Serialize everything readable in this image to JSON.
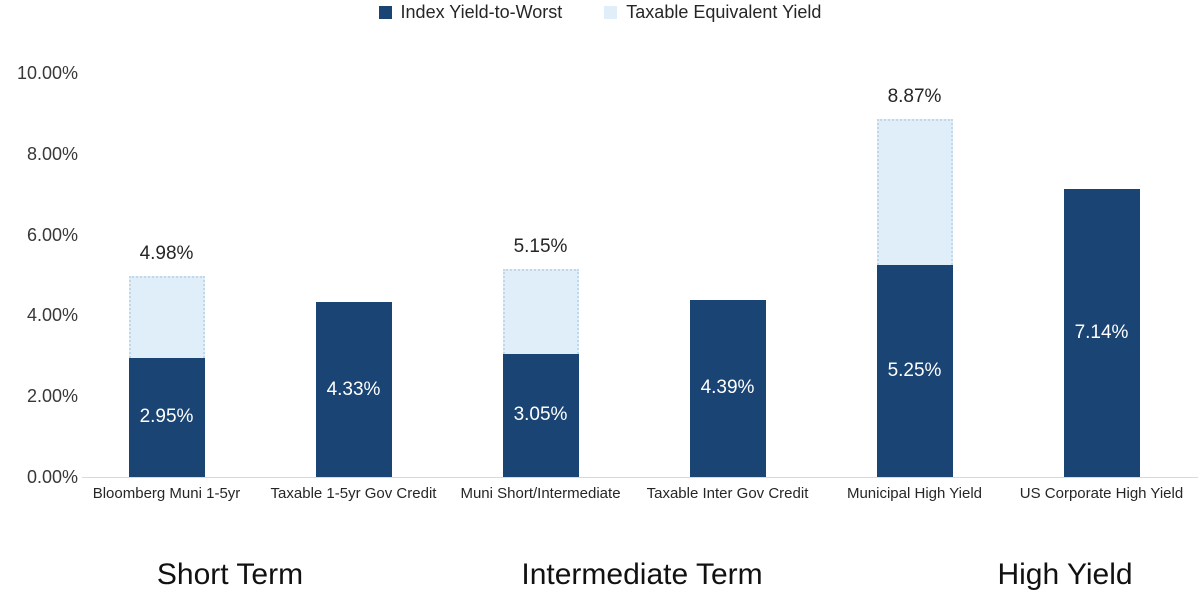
{
  "chart_data": {
    "type": "bar",
    "stacked": true,
    "title": "",
    "legend_position": "top",
    "grid": false,
    "ylim": [
      0,
      10
    ],
    "y_ticks": [
      "0.00%",
      "2.00%",
      "4.00%",
      "6.00%",
      "8.00%",
      "10.00%"
    ],
    "categories": [
      "Bloomberg Muni 1-5yr",
      "Taxable 1-5yr Gov Credit",
      "Muni Short/Intermediate",
      "Taxable Inter Gov Credit",
      "Municipal High Yield",
      "US Corporate High Yield"
    ],
    "series": [
      {
        "name": "Index Yield-to-Worst",
        "color": "#1a4473",
        "values": [
          2.95,
          4.33,
          3.05,
          4.39,
          5.25,
          7.14
        ],
        "value_labels": [
          "2.95%",
          "4.33%",
          "3.05%",
          "4.39%",
          "5.25%",
          "7.14%"
        ]
      },
      {
        "name": "Taxable Equivalent Yield",
        "color": "#dfeef8",
        "values": [
          2.03,
          0,
          2.1,
          0,
          3.62,
          0
        ]
      }
    ],
    "stack_totals": [
      4.98,
      null,
      5.15,
      null,
      8.87,
      null
    ],
    "stack_total_labels": [
      "4.98%",
      null,
      "5.15%",
      null,
      "8.87%",
      null
    ],
    "groups": [
      {
        "label": "Short Term",
        "bars": [
          0,
          1
        ]
      },
      {
        "label": "Intermediate Term",
        "bars": [
          2,
          3
        ]
      },
      {
        "label": "High Yield",
        "bars": [
          4,
          5
        ]
      }
    ],
    "styles": {
      "tey_dotted_border": "#c2d8e8",
      "axis_line": "#d9d9d9",
      "axis_text": "#383838",
      "bar_value_text": "#ffffff",
      "label_text": "#262626"
    }
  }
}
